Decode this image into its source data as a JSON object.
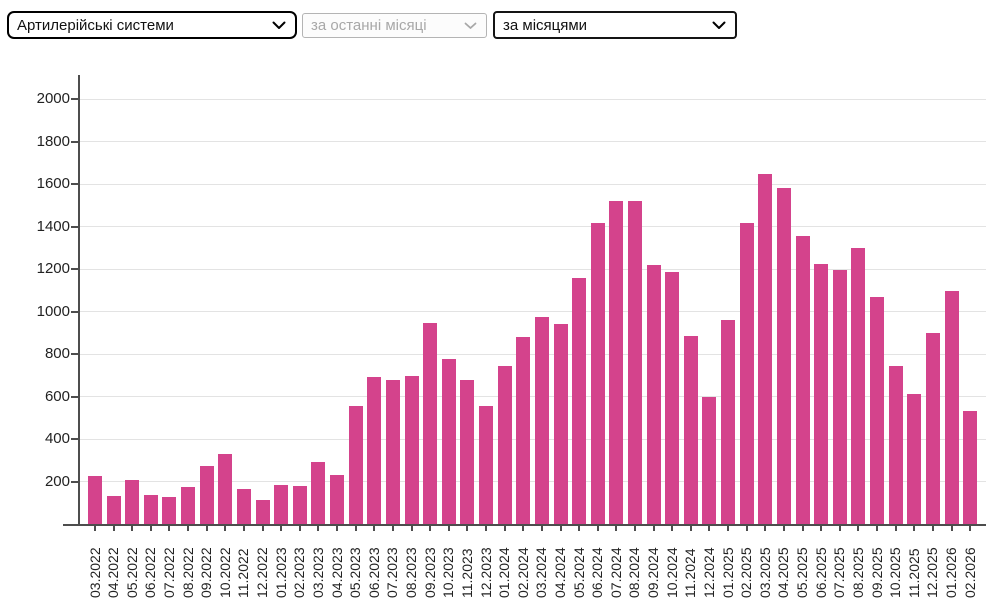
{
  "controls": {
    "category_select": {
      "value": "Артилерійські системи",
      "disabled": false
    },
    "period_select": {
      "value": "за останні місяці",
      "disabled": true
    },
    "grouping_select": {
      "value": "за місяцями",
      "disabled": false
    }
  },
  "chart_data": {
    "type": "bar",
    "title": "",
    "xlabel": "",
    "ylabel": "",
    "categories": [
      "03.2022",
      "04.2022",
      "05.2022",
      "06.2022",
      "07.2022",
      "08.2022",
      "09.2022",
      "10.2022",
      "11.2022",
      "12.2022",
      "01.2023",
      "02.2023",
      "03.2023",
      "04.2023",
      "05.2023",
      "06.2023",
      "07.2023",
      "08.2023",
      "09.2023",
      "10.2023",
      "11.2023",
      "12.2023",
      "01.2024",
      "02.2024",
      "03.2024",
      "04.2024",
      "05.2024",
      "06.2024",
      "07.2024",
      "08.2024",
      "09.2024",
      "10.2024",
      "11.2024",
      "12.2024",
      "01.2025",
      "02.2025",
      "03.2025",
      "04.2025",
      "05.2025",
      "06.2025",
      "07.2025",
      "08.2025",
      "09.2025",
      "10.2025",
      "11.2025",
      "12.2025",
      "01.2026",
      "02.2026"
    ],
    "values": [
      225,
      130,
      205,
      135,
      125,
      175,
      275,
      330,
      165,
      115,
      185,
      180,
      290,
      230,
      555,
      690,
      680,
      695,
      945,
      775,
      680,
      555,
      745,
      880,
      975,
      940,
      1160,
      1415,
      1520,
      1520,
      1220,
      1185,
      885,
      600,
      960,
      1415,
      1650,
      1580,
      1355,
      1225,
      1195,
      1300,
      1070,
      745,
      610,
      900,
      1095,
      530
    ],
    "ylim": [
      0,
      2100
    ],
    "yticks": [
      200,
      400,
      600,
      800,
      1000,
      1200,
      1400,
      1600,
      1800,
      2000
    ],
    "grid": true,
    "legend": false,
    "bar_color": "#d4438c",
    "axis_color": "#4d4d4d",
    "gridline_color": "#e3e3e3",
    "label_color": "#222222"
  }
}
